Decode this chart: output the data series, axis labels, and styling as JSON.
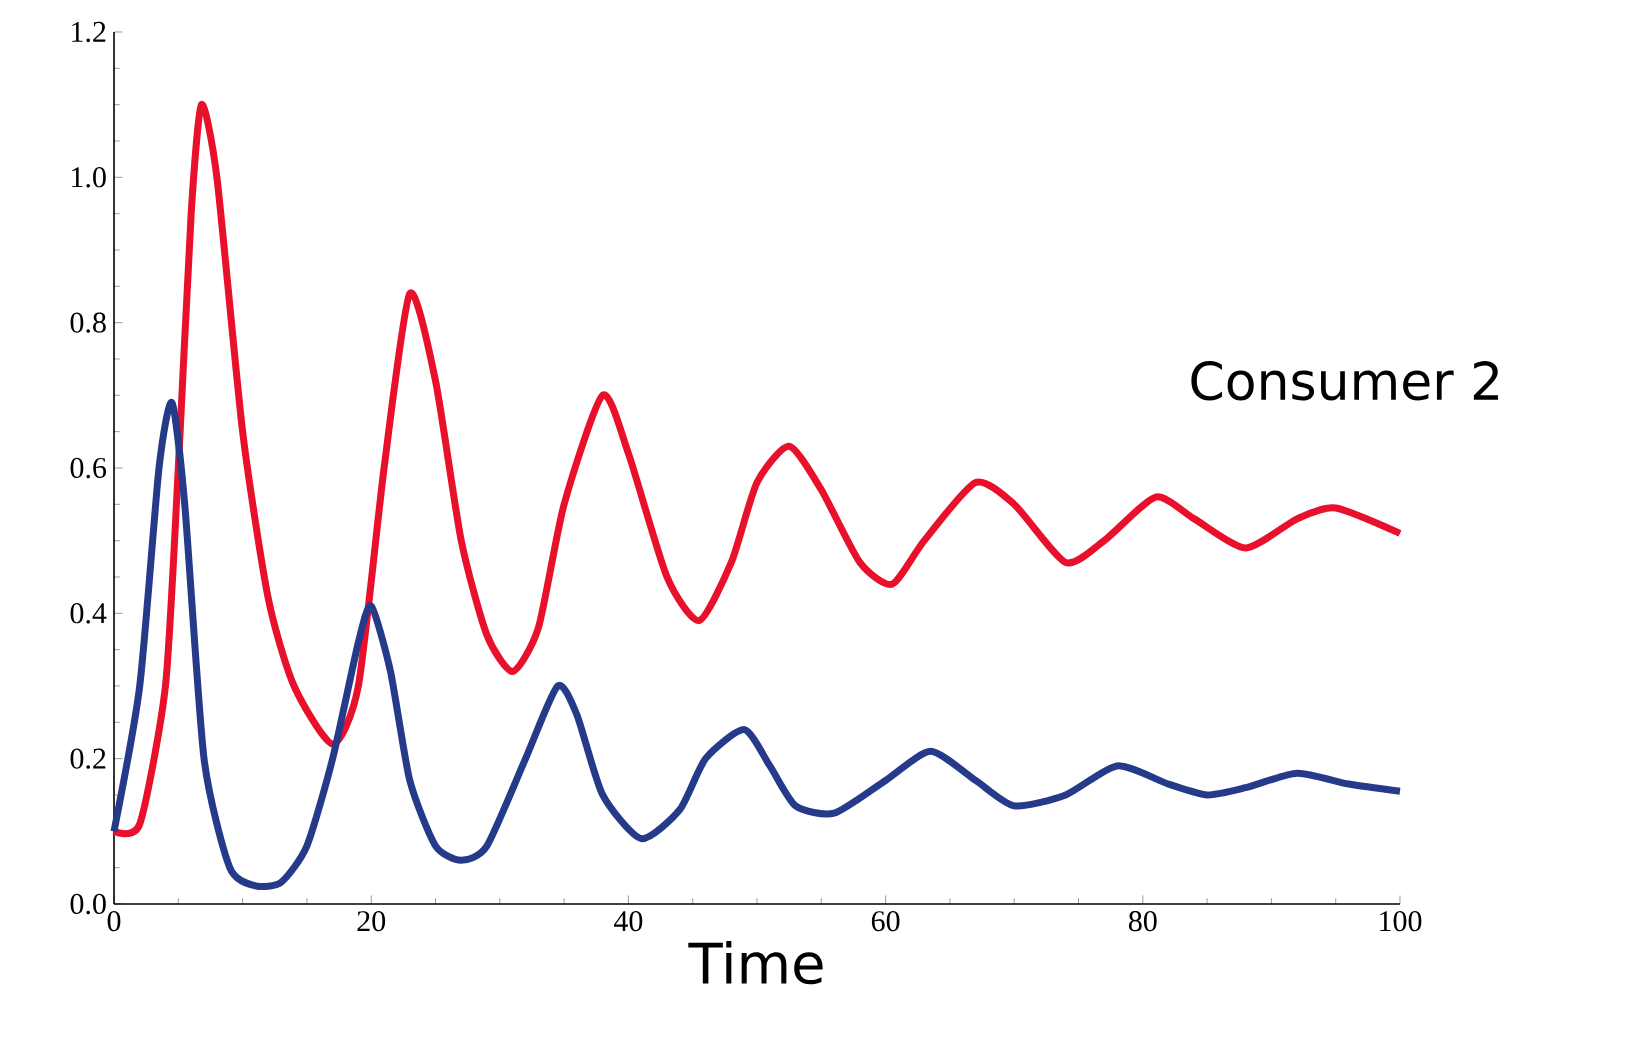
{
  "chart_data": {
    "type": "line",
    "xlabel": "Time",
    "annotations": [
      "Consumer 2"
    ],
    "xlim": [
      0,
      100
    ],
    "ylim": [
      0,
      1.2
    ],
    "xticks": [
      0,
      20,
      40,
      60,
      80,
      100
    ],
    "yticks": [
      {
        "value": 0,
        "label": "0.0"
      },
      {
        "value": 0.2,
        "label": "0.2"
      },
      {
        "value": 0.4,
        "label": "0.4"
      },
      {
        "value": 0.6,
        "label": "0.6"
      },
      {
        "value": 0.8,
        "label": "0.8"
      },
      {
        "value": 1.0,
        "label": "1.0"
      },
      {
        "value": 1.2,
        "label": "1.2"
      }
    ],
    "grid": false,
    "marker": "none",
    "line_style": "solid",
    "series": [
      {
        "color": "#e8102a",
        "x": [
          0,
          2,
          4,
          5,
          6,
          6.8,
          8,
          10,
          12,
          14,
          17,
          19,
          21,
          23,
          25,
          27,
          29,
          31,
          33,
          35,
          38,
          40,
          43,
          45.5,
          48,
          50,
          52.5,
          55,
          58,
          60.5,
          63,
          67,
          70,
          74,
          77,
          81,
          84,
          88,
          92,
          95,
          100
        ],
        "values": [
          0.1,
          0.11,
          0.3,
          0.6,
          0.95,
          1.1,
          1.0,
          0.65,
          0.42,
          0.3,
          0.22,
          0.3,
          0.6,
          0.84,
          0.72,
          0.5,
          0.37,
          0.32,
          0.38,
          0.55,
          0.7,
          0.62,
          0.45,
          0.39,
          0.47,
          0.58,
          0.63,
          0.57,
          0.47,
          0.44,
          0.5,
          0.58,
          0.55,
          0.47,
          0.5,
          0.56,
          0.53,
          0.49,
          0.53,
          0.545,
          0.51
        ]
      },
      {
        "color": "#263a8a",
        "x": [
          0,
          2,
          3.5,
          4.5,
          5.5,
          7,
          9,
          11,
          13,
          15,
          17,
          19,
          20,
          21.5,
          23,
          25,
          27,
          29,
          32,
          34.5,
          36,
          38,
          41,
          44,
          46,
          49,
          51,
          53,
          56,
          60,
          63.5,
          67,
          70,
          74,
          78,
          82,
          85,
          88,
          92,
          96,
          100
        ],
        "values": [
          0.1,
          0.3,
          0.6,
          0.69,
          0.55,
          0.2,
          0.05,
          0.025,
          0.03,
          0.08,
          0.2,
          0.36,
          0.41,
          0.32,
          0.17,
          0.08,
          0.06,
          0.08,
          0.2,
          0.3,
          0.26,
          0.15,
          0.09,
          0.13,
          0.2,
          0.24,
          0.19,
          0.135,
          0.125,
          0.17,
          0.21,
          0.17,
          0.135,
          0.15,
          0.19,
          0.165,
          0.15,
          0.16,
          0.18,
          0.165,
          0.155
        ]
      }
    ]
  }
}
